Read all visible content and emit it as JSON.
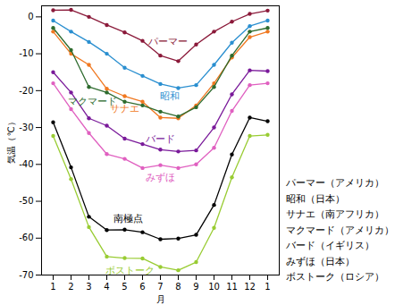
{
  "chart_data": {
    "type": "line",
    "x_label": "月",
    "y_label": "気温（℃）",
    "categories": [
      1,
      2,
      3,
      4,
      5,
      6,
      7,
      8,
      9,
      10,
      11,
      12,
      1
    ],
    "series": [
      {
        "name": "パーマー",
        "color": "#8b1a3a",
        "values": [
          1.8,
          1.9,
          0,
          -2.2,
          -4.2,
          -6.5,
          -10.5,
          -12,
          -7.5,
          -4,
          -1.3,
          0.8,
          1.7
        ]
      },
      {
        "name": "昭和",
        "color": "#2a8fd0",
        "values": [
          -1,
          -4,
          -6.8,
          -10,
          -13.8,
          -16,
          -18.2,
          -19.3,
          -18.5,
          -13,
          -7,
          -2.5,
          -1
        ]
      },
      {
        "name": "サナエ",
        "color": "#f07820",
        "values": [
          -4,
          -10,
          -13,
          -19.5,
          -21.5,
          -23,
          -27.3,
          -27.5,
          -24,
          -18,
          -11,
          -5.5,
          -4
        ]
      },
      {
        "name": "マクマード",
        "color": "#2e6b2e",
        "values": [
          -3,
          -9,
          -19,
          -20.5,
          -23,
          -24,
          -25.7,
          -27,
          -24.5,
          -19,
          -10.5,
          -4,
          -3
        ]
      },
      {
        "name": "バード",
        "color": "#7a1a9a",
        "values": [
          -15,
          -20.5,
          -27.5,
          -29.5,
          -33,
          -34.5,
          -36,
          -36.5,
          -36.2,
          -30,
          -21,
          -14.5,
          -14.7
        ]
      },
      {
        "name": "みずほ",
        "color": "#e060c0",
        "values": [
          -18,
          -25,
          -31.5,
          -37.2,
          -38.5,
          -41,
          -40.2,
          -41,
          -40,
          -35.5,
          -25.5,
          -18.5,
          -18
        ]
      },
      {
        "name": "南極点",
        "color": "#000000",
        "values": [
          -28.6,
          -40.8,
          -54.2,
          -57.8,
          -57.7,
          -58.4,
          -60.3,
          -60.1,
          -59.1,
          -51,
          -37.3,
          -27.3,
          -28.3
        ]
      },
      {
        "name": "ボストーク",
        "color": "#99cc33",
        "values": [
          -32.3,
          -44,
          -57,
          -65,
          -65.4,
          -65.5,
          -67.8,
          -68.7,
          -66.5,
          -57.2,
          -43.5,
          -32.3,
          -32
        ]
      }
    ],
    "ylim": [
      -70,
      3
    ],
    "yticks": [
      0,
      -10,
      -20,
      -30,
      -40,
      -50,
      -60,
      -70
    ],
    "grid": false,
    "marker": "circle",
    "annotations": [
      "パーマー（アメリカ）",
      "昭和（日本）",
      "サナエ（南アフリカ）",
      "マクマード（アメリカ）",
      "バード（イギリス）",
      "みずほ（日本）",
      "ボストーク（ロシア）"
    ]
  }
}
